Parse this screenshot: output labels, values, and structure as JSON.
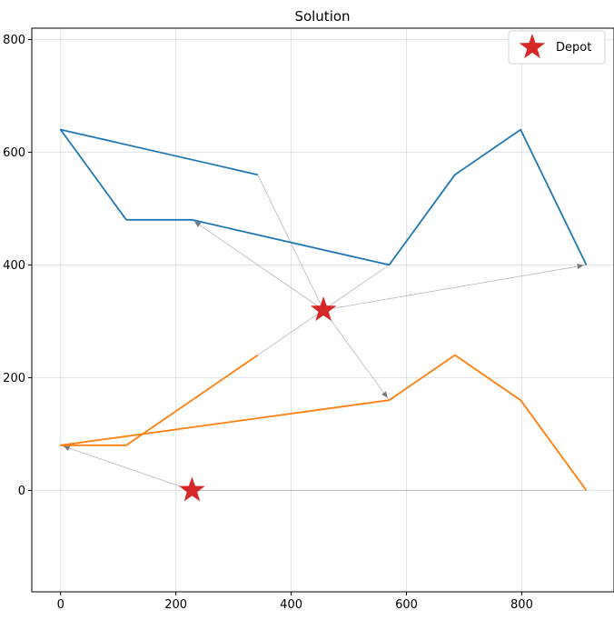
{
  "chart_data": {
    "type": "line",
    "title": "Solution",
    "xlabel": "",
    "ylabel": "",
    "xlim": [
      -50,
      960
    ],
    "ylim": [
      -180,
      820
    ],
    "xticks": [
      0,
      200,
      400,
      600,
      800
    ],
    "yticks": [
      0,
      200,
      400,
      600,
      800
    ],
    "grid": true,
    "legend": {
      "position": "top-right",
      "entries": [
        {
          "label": "Depot",
          "marker": "star",
          "color": "#d62728"
        }
      ]
    },
    "series": [
      {
        "color": "#1f77b4",
        "points": [
          [
            342,
            560
          ],
          [
            0,
            640
          ],
          [
            114,
            480
          ],
          [
            228,
            480
          ],
          [
            570,
            400
          ],
          [
            684,
            560
          ],
          [
            798,
            640
          ],
          [
            912,
            400
          ]
        ]
      },
      {
        "color": "#ff7f0e",
        "points": [
          [
            342,
            240
          ],
          [
            114,
            80
          ],
          [
            0,
            80
          ],
          [
            570,
            160
          ],
          [
            684,
            240
          ],
          [
            798,
            160
          ],
          [
            912,
            0
          ]
        ]
      }
    ],
    "depots": [
      [
        456,
        320
      ],
      [
        228,
        0
      ]
    ],
    "connectors": [
      {
        "from": [
          456,
          320
        ],
        "to": [
          342,
          560
        ],
        "arrow": false
      },
      {
        "from": [
          456,
          320
        ],
        "to": [
          228,
          480
        ],
        "arrow": true
      },
      {
        "from": [
          456,
          320
        ],
        "to": [
          570,
          400
        ],
        "arrow": false
      },
      {
        "from": [
          456,
          320
        ],
        "to": [
          912,
          400
        ],
        "arrow": true
      },
      {
        "from": [
          456,
          320
        ],
        "to": [
          342,
          240
        ],
        "arrow": false
      },
      {
        "from": [
          456,
          320
        ],
        "to": [
          570,
          160
        ],
        "arrow": true
      },
      {
        "from": [
          228,
          0
        ],
        "to": [
          0,
          80
        ],
        "arrow": true
      },
      {
        "from": [
          228,
          0
        ],
        "to": [
          912,
          0
        ],
        "arrow": false
      }
    ]
  }
}
